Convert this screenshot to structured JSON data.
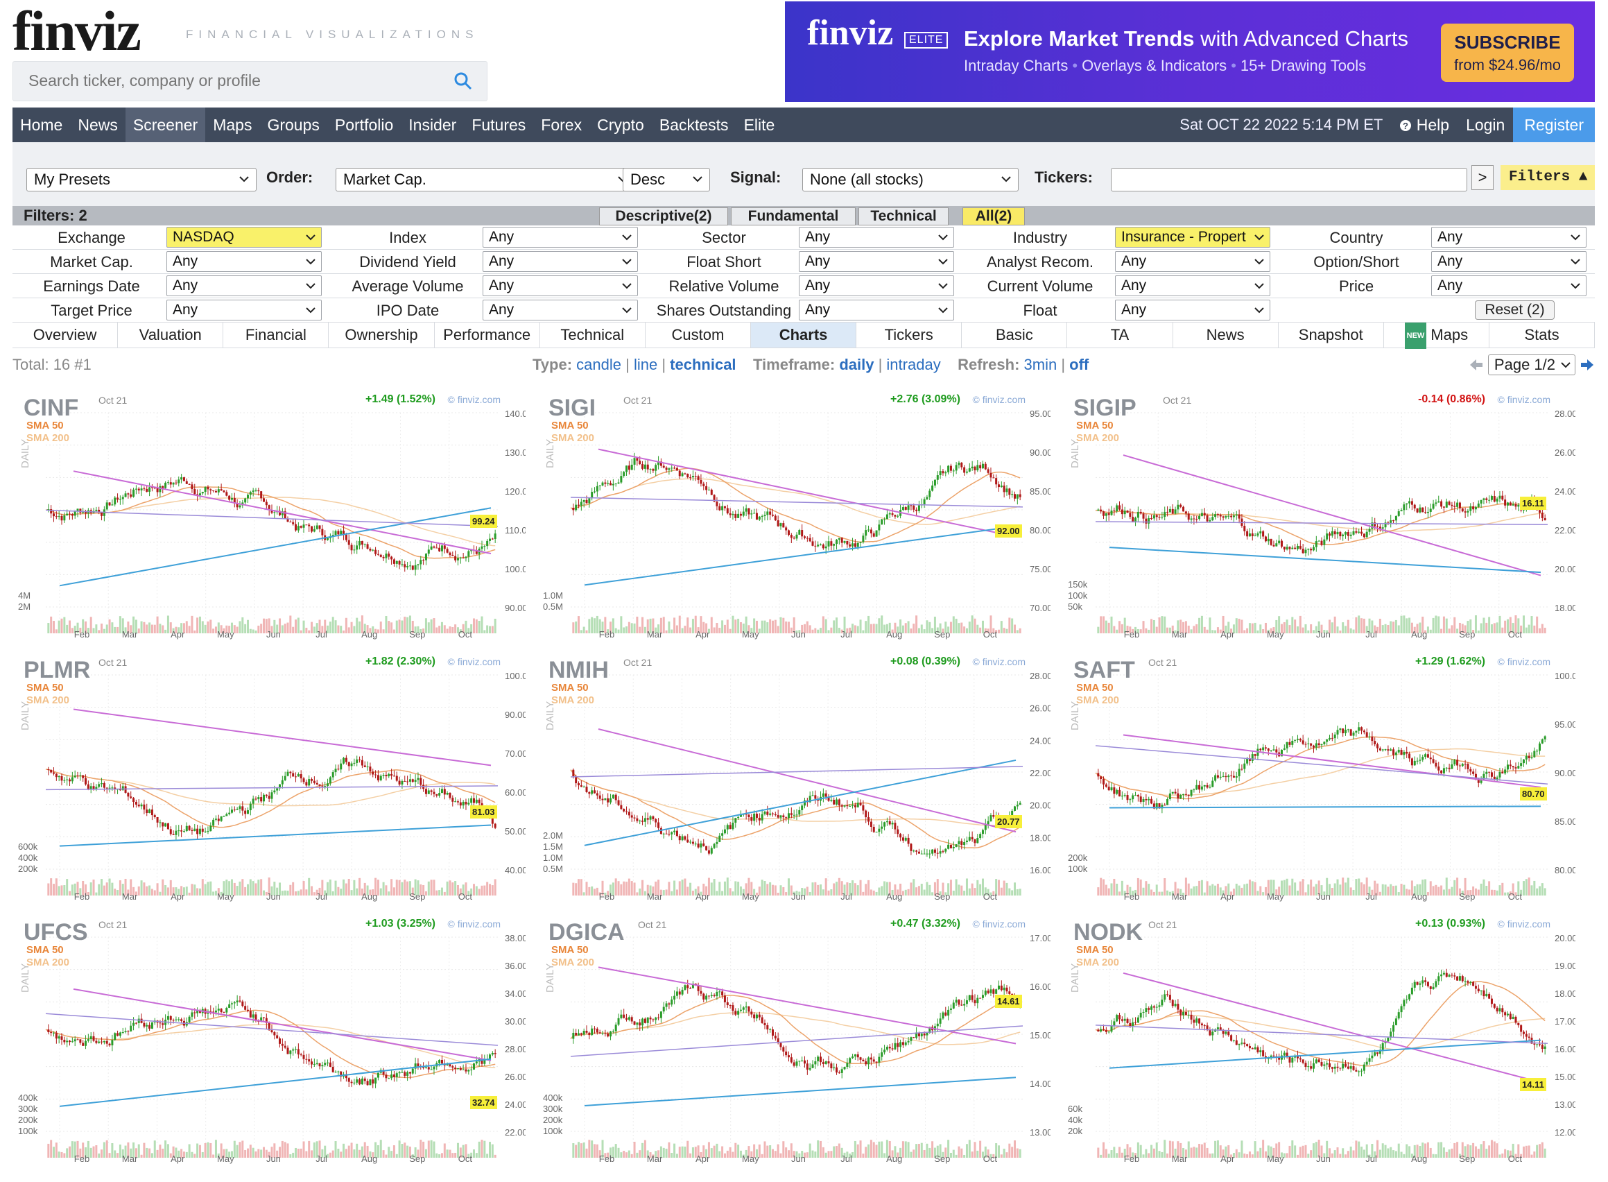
{
  "header": {
    "logo": "finviz",
    "tagline": "FINANCIAL VISUALIZATIONS",
    "search_placeholder": "Search ticker, company or profile"
  },
  "banner": {
    "logo": "finviz",
    "elite": "ELITE",
    "headline_bold": "Explore Market Trends",
    "headline_rest": " with Advanced Charts",
    "sub1": "Intraday Charts",
    "sub2": "Overlays & Indicators",
    "sub3": "15+ Drawing Tools",
    "cta1": "SUBSCRIBE",
    "cta2": "from $24.96/mo"
  },
  "nav": {
    "items": [
      "Home",
      "News",
      "Screener",
      "Maps",
      "Groups",
      "Portfolio",
      "Insider",
      "Futures",
      "Forex",
      "Crypto",
      "Backtests",
      "Elite"
    ],
    "active_index": 2,
    "date": "Sat OCT 22 2022 5:14 PM ET",
    "help": "Help",
    "login": "Login",
    "register": "Register"
  },
  "controls": {
    "presets": "My Presets",
    "order_label": "Order:",
    "order_value": "Market Cap.",
    "order_dir": "Desc",
    "signal_label": "Signal:",
    "signal_value": "None (all stocks)",
    "tickers_label": "Tickers:",
    "tickers_value": "",
    "go": ">",
    "filters_btn": "Filters ▲"
  },
  "filterbar": {
    "label": "Filters: 2",
    "tabs": [
      "Descriptive(2)",
      "Fundamental",
      "Technical",
      "All(2)"
    ]
  },
  "filters": [
    [
      [
        "Exchange",
        "NASDAQ",
        true
      ],
      [
        "Index",
        "Any",
        false
      ],
      [
        "Sector",
        "Any",
        false
      ],
      [
        "Industry",
        "Insurance - Propert",
        true
      ],
      [
        "Country",
        "Any",
        false
      ]
    ],
    [
      [
        "Market Cap.",
        "Any",
        false
      ],
      [
        "Dividend Yield",
        "Any",
        false
      ],
      [
        "Float Short",
        "Any",
        false
      ],
      [
        "Analyst Recom.",
        "Any",
        false
      ],
      [
        "Option/Short",
        "Any",
        false
      ]
    ],
    [
      [
        "Earnings Date",
        "Any",
        false
      ],
      [
        "Average Volume",
        "Any",
        false
      ],
      [
        "Relative Volume",
        "Any",
        false
      ],
      [
        "Current Volume",
        "Any",
        false
      ],
      [
        "Price",
        "Any",
        false
      ]
    ],
    [
      [
        "Target Price",
        "Any",
        false
      ],
      [
        "IPO Date",
        "Any",
        false
      ],
      [
        "Shares Outstanding",
        "Any",
        false
      ],
      [
        "Float",
        "Any",
        false
      ]
    ]
  ],
  "reset": "Reset (2)",
  "views": [
    "Overview",
    "Valuation",
    "Financial",
    "Ownership",
    "Performance",
    "Technical",
    "Custom",
    "Charts",
    "Tickers",
    "Basic",
    "TA",
    "News",
    "Snapshot",
    "Maps",
    "Stats"
  ],
  "views_active": 7,
  "views_new_badge": "NEW",
  "info": {
    "total": "Total: 16 #1",
    "type_label": "Type:",
    "types": [
      "candle",
      "line",
      "technical"
    ],
    "type_active": 2,
    "timeframe_label": "Timeframe:",
    "timeframes": [
      "daily",
      "intraday"
    ],
    "timeframe_active": 0,
    "refresh_label": "Refresh:",
    "refresh": [
      "3min",
      "off"
    ],
    "page": "Page 1/2"
  },
  "charts": [
    {
      "ticker": "CINF",
      "date": "Oct 21",
      "change": "+1.49 (1.52%)",
      "up": true,
      "price": "99.24",
      "yticks": [
        "140.00",
        "130.00",
        "120.00",
        "110.00",
        "100.00",
        "90.00"
      ],
      "vticks": [
        "4M",
        "2M"
      ]
    },
    {
      "ticker": "SIGI",
      "date": "Oct 21",
      "change": "+2.76 (3.09%)",
      "up": true,
      "price": "92.00",
      "yticks": [
        "95.00",
        "90.00",
        "85.00",
        "80.00",
        "75.00",
        "70.00"
      ],
      "vticks": [
        "1.0M",
        "0.5M"
      ]
    },
    {
      "ticker": "SIGIP",
      "date": "Oct 21",
      "change": "-0.14 (0.86%)",
      "up": false,
      "price": "16.11",
      "yticks": [
        "28.00",
        "26.00",
        "24.00",
        "22.00",
        "20.00",
        "18.00"
      ],
      "vticks": [
        "150k",
        "100k",
        "50k"
      ]
    },
    {
      "ticker": "PLMR",
      "date": "Oct 21",
      "change": "+1.82 (2.30%)",
      "up": true,
      "price": "81.03",
      "yticks": [
        "100.00",
        "90.00",
        "70.00",
        "60.00",
        "50.00",
        "40.00"
      ],
      "vticks": [
        "600k",
        "400k",
        "200k"
      ]
    },
    {
      "ticker": "NMIH",
      "date": "Oct 21",
      "change": "+0.08 (0.39%)",
      "up": true,
      "price": "20.77",
      "yticks": [
        "28.00",
        "26.00",
        "24.00",
        "22.00",
        "20.00",
        "18.00",
        "16.00"
      ],
      "vticks": [
        "2.0M",
        "1.5M",
        "1.0M",
        "0.5M"
      ]
    },
    {
      "ticker": "SAFT",
      "date": "Oct 21",
      "change": "+1.29 (1.62%)",
      "up": true,
      "price": "80.70",
      "yticks": [
        "100.00",
        "95.00",
        "90.00",
        "85.00",
        "80.00"
      ],
      "vticks": [
        "200k",
        "100k"
      ]
    },
    {
      "ticker": "UFCS",
      "date": "Oct 21",
      "change": "+1.03 (3.25%)",
      "up": true,
      "price": "32.74",
      "yticks": [
        "38.00",
        "36.00",
        "34.00",
        "30.00",
        "28.00",
        "26.00",
        "24.00",
        "22.00"
      ],
      "vticks": [
        "400k",
        "300k",
        "200k",
        "100k"
      ]
    },
    {
      "ticker": "DGICA",
      "date": "Oct 21",
      "change": "+0.47 (3.32%)",
      "up": true,
      "price": "14.61",
      "yticks": [
        "17.00",
        "16.00",
        "15.00",
        "14.00",
        "13.00"
      ],
      "vticks": [
        "400k",
        "300k",
        "200k",
        "100k"
      ]
    },
    {
      "ticker": "NODK",
      "date": "Oct 21",
      "change": "+0.13 (0.93%)",
      "up": true,
      "price": "14.11",
      "yticks": [
        "20.00",
        "19.00",
        "18.00",
        "17.00",
        "16.00",
        "15.00",
        "13.00",
        "12.00"
      ],
      "vticks": [
        "60k",
        "40k",
        "20k"
      ]
    }
  ],
  "chart_common": {
    "sma50": "SMA 50",
    "sma200": "SMA 200",
    "daily": "DAILY",
    "brand": "© finviz.com",
    "months": [
      "Feb",
      "Mar",
      "Apr",
      "May",
      "Jun",
      "Jul",
      "Aug",
      "Sep",
      "Oct"
    ]
  }
}
